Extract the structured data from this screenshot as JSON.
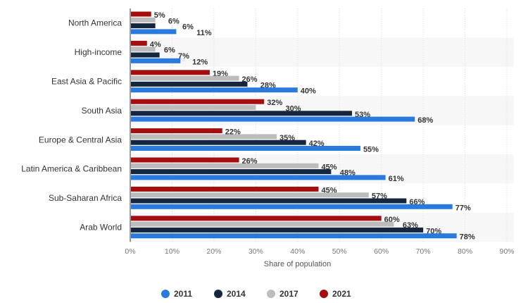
{
  "chart_data": {
    "type": "bar",
    "orientation": "horizontal",
    "title": "",
    "xlabel": "Share of population",
    "ylabel": "",
    "xlim": [
      0,
      90
    ],
    "xticks": [
      "0%",
      "10%",
      "20%",
      "30%",
      "40%",
      "50%",
      "60%",
      "70%",
      "80%",
      "90%"
    ],
    "grid": true,
    "legend_position": "bottom",
    "categories": [
      "North America",
      "High-income",
      "East Asia & Pacific",
      "South Asia",
      "Europe & Central Asia",
      "Latin America & Caribbean",
      "Sub-Saharan Africa",
      "Arab World"
    ],
    "series": [
      {
        "name": "2021",
        "color": "#a50e0e",
        "values": [
          5,
          4,
          19,
          32,
          22,
          26,
          45,
          60
        ]
      },
      {
        "name": "2017",
        "color": "#bcbcbc",
        "values": [
          6,
          6,
          26,
          30,
          35,
          45,
          57,
          63
        ]
      },
      {
        "name": "2014",
        "color": "#14273f",
        "values": [
          6,
          7,
          28,
          53,
          42,
          48,
          66,
          70
        ]
      },
      {
        "name": "2011",
        "color": "#2a7add",
        "values": [
          11,
          12,
          40,
          68,
          55,
          61,
          77,
          78
        ]
      }
    ],
    "legend_order": [
      "2011",
      "2014",
      "2017",
      "2021"
    ]
  }
}
